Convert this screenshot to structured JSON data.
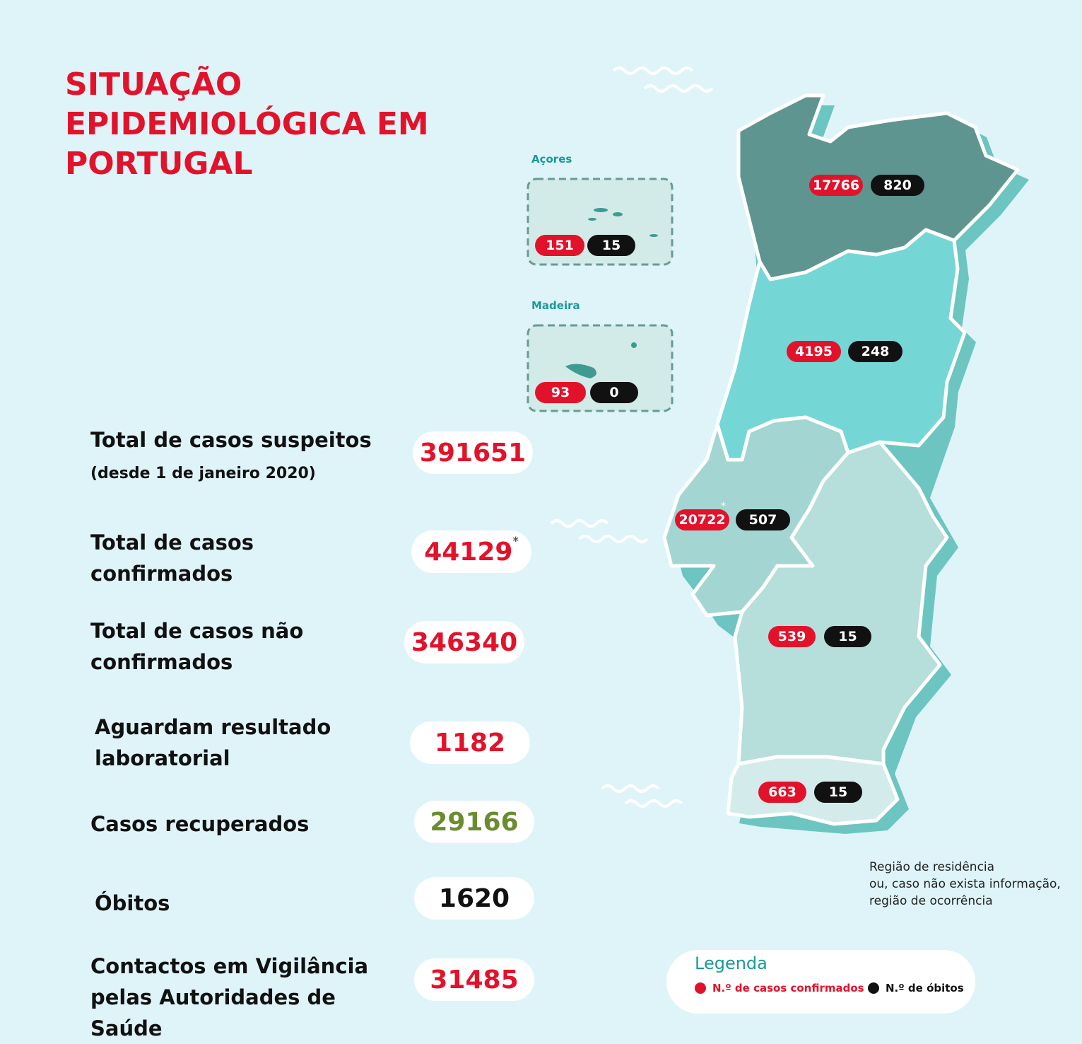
{
  "title": [
    "SITUAÇÃO",
    "EPIDEMIOLÓGICA EM",
    "PORTUGAL"
  ],
  "stats": [
    {
      "label": "Total de casos suspeitos",
      "sublabel": "(desde 1 de janeiro 2020)",
      "value": 391651,
      "color": "#e3122b"
    },
    {
      "label": "Total de casos confirmados",
      "value": 44129,
      "mark": "*",
      "color": "#e3122b"
    },
    {
      "label": "Total de casos não confirmados",
      "value": 346340,
      "color": "#e3122b"
    },
    {
      "label": "Aguardam resultado laboratorial",
      "value": 1182,
      "color": "#e3122b"
    },
    {
      "label": "Casos recuperados",
      "value": 29166,
      "color": "#6b8c2e"
    },
    {
      "label": "Óbitos",
      "value": 1620,
      "color": "#111111"
    },
    {
      "label": "Contactos em Vigilância pelas Autoridades de Saúde",
      "value": 31485,
      "color": "#e3122b"
    }
  ],
  "regions": [
    {
      "confirmed": 17766,
      "deaths": 820
    },
    {
      "confirmed": 4195,
      "deaths": 248
    },
    {
      "confirmed": 20722,
      "deaths": 507,
      "mark": "*"
    },
    {
      "confirmed": 539,
      "deaths": 15
    },
    {
      "confirmed": 663,
      "deaths": 15
    },
    {
      "name": "Açores",
      "confirmed": 151,
      "deaths": 15
    },
    {
      "name": "Madeira",
      "confirmed": 93,
      "deaths": 0
    }
  ],
  "note": [
    "Região de residência",
    "ou, caso não exista informação,",
    "região de ocorrência"
  ],
  "legend": {
    "title": "Legenda",
    "items": [
      {
        "label": "N.º de casos confirmados",
        "color": "#e3122b"
      },
      {
        "label": "N.º de óbitos",
        "color": "#111111"
      }
    ]
  }
}
